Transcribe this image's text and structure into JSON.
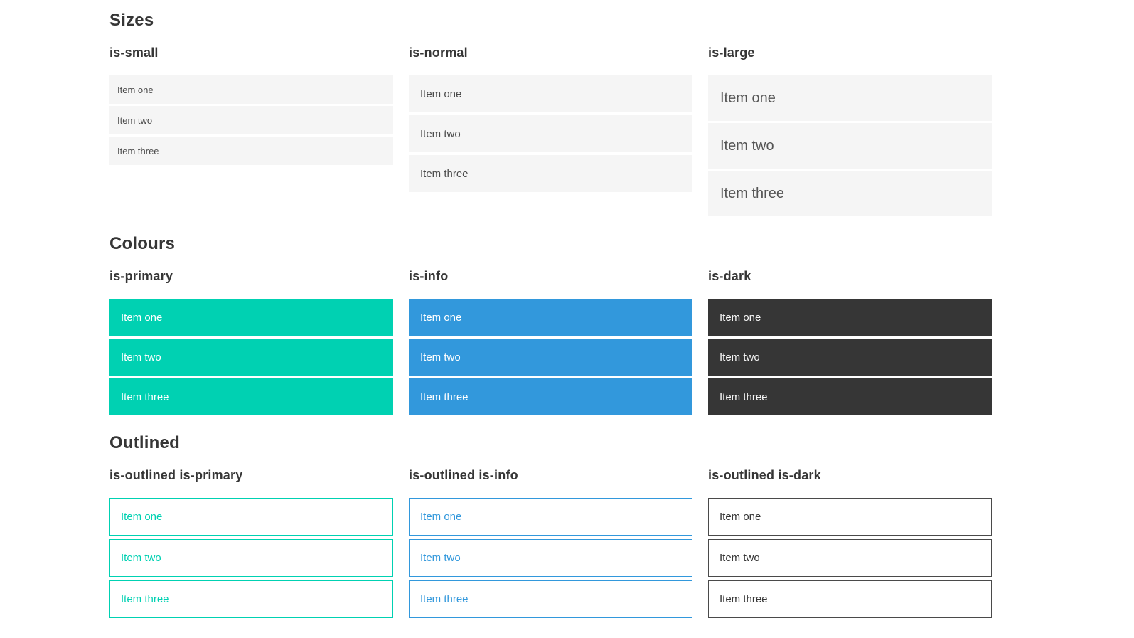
{
  "colors": {
    "primary": "#00d1b2",
    "info": "#3298dc",
    "dark": "#363636",
    "item_background": "#f5f5f5",
    "heading_text": "#363636",
    "item_text": "#4a4a4a",
    "page_background": "#ffffff"
  },
  "sections": [
    {
      "title": "Sizes",
      "groups": [
        {
          "label": "is-small",
          "items": [
            "Item one",
            "Item two",
            "Item three"
          ]
        },
        {
          "label": "is-normal",
          "items": [
            "Item one",
            "Item two",
            "Item three"
          ]
        },
        {
          "label": "is-large",
          "items": [
            "Item one",
            "Item two",
            "Item three"
          ]
        }
      ]
    },
    {
      "title": "Colours",
      "groups": [
        {
          "label": "is-primary",
          "items": [
            "Item one",
            "Item two",
            "Item three"
          ]
        },
        {
          "label": "is-info",
          "items": [
            "Item one",
            "Item two",
            "Item three"
          ]
        },
        {
          "label": "is-dark",
          "items": [
            "Item one",
            "Item two",
            "Item three"
          ]
        }
      ]
    },
    {
      "title": "Outlined",
      "groups": [
        {
          "label": "is-outlined is-primary",
          "items": [
            "Item one",
            "Item two",
            "Item three"
          ]
        },
        {
          "label": "is-outlined is-info",
          "items": [
            "Item one",
            "Item two",
            "Item three"
          ]
        },
        {
          "label": "is-outlined is-dark",
          "items": [
            "Item one",
            "Item two",
            "Item three"
          ]
        }
      ]
    }
  ]
}
